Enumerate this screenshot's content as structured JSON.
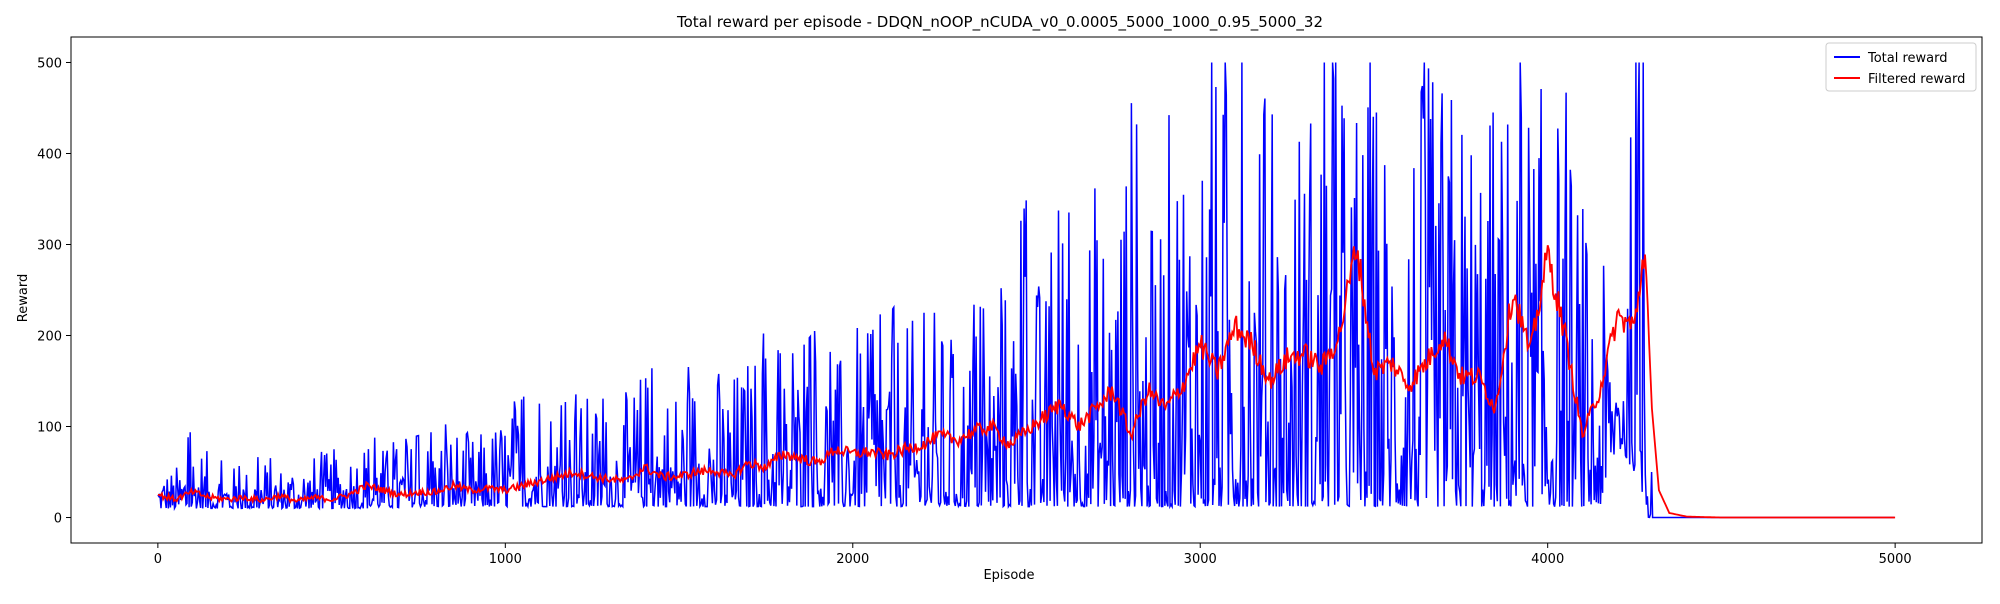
{
  "chart_data": {
    "type": "line",
    "title": "Total reward per episode - DDQN_nOOP_nCUDA_v0_0.0005_5000_1000_0.95_5000_32",
    "xlabel": "Episode",
    "ylabel": "Reward",
    "xlim": [
      -250,
      5250
    ],
    "ylim": [
      -28,
      528
    ],
    "xticks": [
      0,
      1000,
      2000,
      3000,
      4000,
      5000
    ],
    "yticks": [
      0,
      100,
      200,
      300,
      400,
      500
    ],
    "legend_position": "top-right",
    "series": [
      {
        "name": "Total reward",
        "color": "#0000ff",
        "note_sampling": "approximate envelope samples: [episode, low, high]",
        "envelope": [
          [
            0,
            10,
            62
          ],
          [
            50,
            10,
            55
          ],
          [
            100,
            10,
            100
          ],
          [
            150,
            10,
            68
          ],
          [
            200,
            10,
            60
          ],
          [
            250,
            10,
            55
          ],
          [
            300,
            10,
            70
          ],
          [
            350,
            10,
            60
          ],
          [
            400,
            10,
            72
          ],
          [
            450,
            10,
            70
          ],
          [
            500,
            10,
            75
          ],
          [
            550,
            10,
            85
          ],
          [
            600,
            10,
            95
          ],
          [
            650,
            12,
            80
          ],
          [
            700,
            10,
            85
          ],
          [
            750,
            12,
            90
          ],
          [
            800,
            12,
            95
          ],
          [
            850,
            12,
            108
          ],
          [
            900,
            12,
            90
          ],
          [
            950,
            12,
            100
          ],
          [
            1000,
            12,
            125
          ],
          [
            1050,
            12,
            130
          ],
          [
            1100,
            12,
            178
          ],
          [
            1150,
            12,
            120
          ],
          [
            1200,
            12,
            135
          ],
          [
            1250,
            12,
            140
          ],
          [
            1300,
            12,
            125
          ],
          [
            1350,
            12,
            140
          ],
          [
            1400,
            12,
            175
          ],
          [
            1450,
            12,
            150
          ],
          [
            1500,
            12,
            160
          ],
          [
            1550,
            12,
            170
          ],
          [
            1600,
            12,
            175
          ],
          [
            1650,
            12,
            165
          ],
          [
            1700,
            12,
            185
          ],
          [
            1750,
            12,
            205
          ],
          [
            1800,
            12,
            175
          ],
          [
            1850,
            12,
            185
          ],
          [
            1900,
            12,
            210
          ],
          [
            1950,
            12,
            170
          ],
          [
            2000,
            12,
            220
          ],
          [
            2050,
            12,
            200
          ],
          [
            2100,
            12,
            240
          ],
          [
            2150,
            12,
            215
          ],
          [
            2200,
            12,
            225
          ],
          [
            2250,
            12,
            225
          ],
          [
            2300,
            12,
            180
          ],
          [
            2350,
            12,
            235
          ],
          [
            2400,
            12,
            225
          ],
          [
            2450,
            12,
            275
          ],
          [
            2500,
            12,
            350
          ],
          [
            2550,
            12,
            245
          ],
          [
            2600,
            12,
            355
          ],
          [
            2650,
            12,
            310
          ],
          [
            2700,
            12,
            390
          ],
          [
            2750,
            12,
            340
          ],
          [
            2800,
            12,
            500
          ],
          [
            2850,
            12,
            300
          ],
          [
            2900,
            12,
            445
          ],
          [
            2950,
            12,
            500
          ],
          [
            3000,
            12,
            500
          ],
          [
            3050,
            12,
            500
          ],
          [
            3100,
            12,
            500
          ],
          [
            3150,
            12,
            500
          ],
          [
            3200,
            12,
            445
          ],
          [
            3250,
            12,
            430
          ],
          [
            3300,
            12,
            500
          ],
          [
            3350,
            12,
            500
          ],
          [
            3400,
            12,
            500
          ],
          [
            3450,
            12,
            500
          ],
          [
            3500,
            12,
            500
          ],
          [
            3550,
            12,
            440
          ],
          [
            3600,
            12,
            500
          ],
          [
            3650,
            12,
            500
          ],
          [
            3700,
            12,
            500
          ],
          [
            3750,
            12,
            500
          ],
          [
            3800,
            12,
            500
          ],
          [
            3850,
            12,
            470
          ],
          [
            3900,
            12,
            500
          ],
          [
            3950,
            12,
            500
          ],
          [
            4000,
            12,
            470
          ],
          [
            4050,
            12,
            475
          ],
          [
            4100,
            12,
            340
          ],
          [
            4150,
            12,
            290
          ],
          [
            4200,
            80,
            230
          ],
          [
            4250,
            50,
            500
          ],
          [
            4280,
            20,
            500
          ],
          [
            4290,
            0,
            500
          ],
          [
            4300,
            0,
            0
          ],
          [
            5000,
            0,
            0
          ]
        ]
      },
      {
        "name": "Filtered reward",
        "color": "#ff0000",
        "x": [
          0,
          50,
          100,
          150,
          200,
          250,
          300,
          350,
          400,
          450,
          500,
          550,
          600,
          650,
          700,
          750,
          800,
          850,
          900,
          950,
          1000,
          1050,
          1100,
          1150,
          1200,
          1250,
          1300,
          1350,
          1400,
          1450,
          1500,
          1550,
          1600,
          1650,
          1700,
          1750,
          1800,
          1850,
          1900,
          1950,
          2000,
          2050,
          2100,
          2150,
          2200,
          2250,
          2300,
          2350,
          2400,
          2450,
          2500,
          2550,
          2600,
          2650,
          2700,
          2750,
          2800,
          2850,
          2900,
          2950,
          3000,
          3050,
          3100,
          3150,
          3200,
          3250,
          3300,
          3350,
          3400,
          3450,
          3500,
          3550,
          3600,
          3650,
          3700,
          3750,
          3800,
          3850,
          3900,
          3950,
          4000,
          4050,
          4100,
          4150,
          4200,
          4250,
          4280,
          4300,
          4320,
          4350,
          4400,
          4500,
          5000
        ],
        "y": [
          25,
          20,
          28,
          22,
          20,
          22,
          19,
          24,
          18,
          22,
          20,
          25,
          35,
          30,
          25,
          28,
          28,
          35,
          30,
          32,
          30,
          35,
          40,
          45,
          50,
          45,
          42,
          40,
          55,
          45,
          45,
          50,
          52,
          45,
          60,
          55,
          70,
          65,
          60,
          75,
          70,
          72,
          68,
          75,
          80,
          90,
          85,
          95,
          100,
          80,
          95,
          110,
          125,
          100,
          120,
          140,
          90,
          140,
          120,
          145,
          190,
          160,
          210,
          190,
          150,
          175,
          180,
          165,
          200,
          300,
          160,
          170,
          145,
          170,
          200,
          155,
          155,
          120,
          250,
          180,
          290,
          200,
          90,
          140,
          220,
          210,
          300,
          120,
          30,
          5,
          1,
          0,
          0
        ]
      }
    ]
  }
}
